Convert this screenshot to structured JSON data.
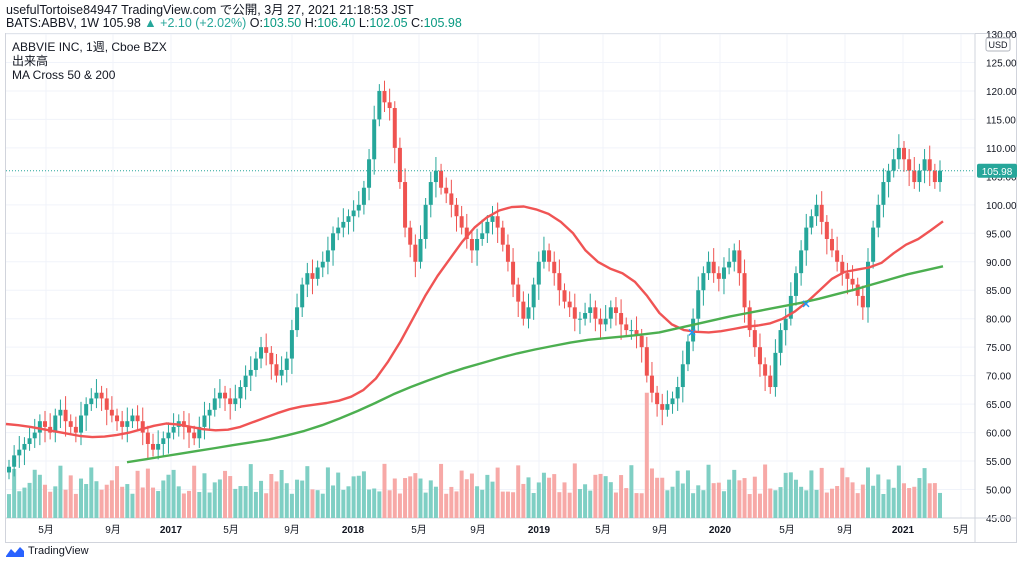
{
  "header": {
    "line1": "usefulTortoise84947 TradingView.com で公開, 3月 27, 2021 21:18:53 JST",
    "symbol_prefix": "BATS:ABBV, 1W ",
    "last": "105.98",
    "change": "▲ +2.10 (+2.02%)",
    "o_label": " O:",
    "o": "103.50",
    "h_label": " H:",
    "h": "106.40",
    "l_label": " L:",
    "l": "102.05",
    "c_label": " C:",
    "c": "105.98"
  },
  "legend": {
    "symbol": "ABBVIE INC, 1週, Cboe BZX",
    "volume": "出来高",
    "ma": "MA Cross 50 & 200"
  },
  "currency_label": "USD",
  "price_tag": "105.98",
  "brand": "TradingView",
  "colors": {
    "up": "#26a69a",
    "down": "#ef5350",
    "ma50": "#f05454",
    "ma200": "#4caf50",
    "vol_up": "#7fcfc4",
    "vol_down": "#f7a9a7",
    "grid": "#f0f3fa"
  },
  "chart_data": {
    "type": "candlestick",
    "interval": "1W",
    "ylim": [
      45,
      130
    ],
    "y_ticks": [
      "130.00",
      "125.00",
      "120.00",
      "115.00",
      "110.00",
      "105.00",
      "100.00",
      "95.00",
      "90.00",
      "85.00",
      "80.00",
      "75.00",
      "70.00",
      "65.00",
      "60.00",
      "55.00",
      "50.00",
      "45.00"
    ],
    "x_ticks": [
      "5月",
      "9月",
      "2017",
      "5月",
      "9月",
      "2018",
      "5月",
      "9月",
      "2019",
      "5月",
      "9月",
      "2020",
      "5月",
      "9月",
      "2021",
      "5月"
    ],
    "closes": [
      54,
      56,
      57,
      58,
      59,
      60,
      62,
      61,
      60,
      63,
      64,
      62,
      61,
      60,
      63,
      65,
      66,
      67,
      66,
      64,
      63,
      62,
      61,
      62,
      63,
      62,
      60,
      58,
      57,
      58,
      59,
      60,
      61,
      62,
      61,
      60,
      59,
      61,
      63,
      64,
      66,
      67,
      66,
      65,
      66,
      68,
      70,
      71,
      73,
      75,
      74,
      72,
      70,
      71,
      73,
      78,
      82,
      86,
      88,
      87,
      89,
      90,
      92,
      95,
      96,
      97,
      98,
      99,
      100,
      103,
      108,
      115,
      120,
      118,
      117,
      110,
      104,
      96,
      93,
      90,
      94,
      100,
      104,
      106,
      103,
      102,
      100,
      98,
      96,
      94,
      92,
      94,
      95,
      97,
      98,
      96,
      93,
      90,
      86,
      83,
      80,
      82,
      86,
      90,
      92,
      90,
      88,
      85,
      83,
      82,
      80,
      80,
      81,
      82,
      80,
      79,
      80,
      82,
      81,
      79,
      78,
      78,
      77,
      75,
      70,
      67,
      65,
      64,
      65,
      66,
      68,
      72,
      76,
      80,
      85,
      88,
      90,
      88,
      87,
      89,
      90,
      92,
      88,
      82,
      78,
      75,
      72,
      70,
      68,
      74,
      78,
      80,
      84,
      88,
      92,
      96,
      98,
      100,
      97,
      94,
      92,
      90,
      88,
      87,
      86,
      84,
      82,
      90,
      96,
      100,
      104,
      106,
      108,
      110,
      108,
      106,
      104,
      106,
      108,
      106,
      104,
      106
    ],
    "volume_max_price": 57,
    "volume_spike_value": 67,
    "series": [
      {
        "name": "MA 50",
        "values": [
          61.5,
          61.3,
          61.0,
          60.6,
          60.2,
          59.8,
          59.4,
          59.2,
          59.3,
          59.6,
          60.0,
          60.6,
          61.2,
          61.6,
          61.4,
          61.0,
          60.6,
          60.4,
          60.5,
          61.0,
          61.8,
          62.6,
          63.4,
          64.1,
          64.6,
          64.9,
          65.2,
          65.6,
          66.3,
          67.5,
          69.5,
          72.5,
          76.0,
          80.0,
          84.0,
          87.5,
          90.5,
          93.5,
          96.0,
          97.8,
          99.0,
          99.6,
          99.7,
          99.2,
          98.4,
          97.0,
          95.0,
          92.0,
          90.0,
          88.8,
          88.0,
          86.5,
          84.0,
          81.0,
          79.0,
          78.0,
          77.7,
          77.6,
          77.8,
          78.2,
          78.6,
          78.8,
          79.2,
          80.0,
          81.3,
          83.0,
          85.0,
          87.0,
          88.2,
          88.6,
          89.0,
          89.8,
          91.5,
          93.0,
          94.0,
          95.5,
          97.1
        ]
      },
      {
        "name": "MA 200",
        "values": [
          54.8,
          55.3,
          55.8,
          56.3,
          56.8,
          57.3,
          57.8,
          58.3,
          58.8,
          59.5,
          60.3,
          61.3,
          62.5,
          63.8,
          65.2,
          66.7,
          68.0,
          69.2,
          70.3,
          71.3,
          72.2,
          73.1,
          73.9,
          74.6,
          75.2,
          75.8,
          76.3,
          76.6,
          76.9,
          77.2,
          77.6,
          78.3,
          79.0,
          79.7,
          80.4,
          81.0,
          81.6,
          82.2,
          82.8,
          83.5,
          84.3,
          85.1,
          86.0,
          86.9,
          87.8,
          88.5,
          89.2
        ]
      }
    ]
  }
}
